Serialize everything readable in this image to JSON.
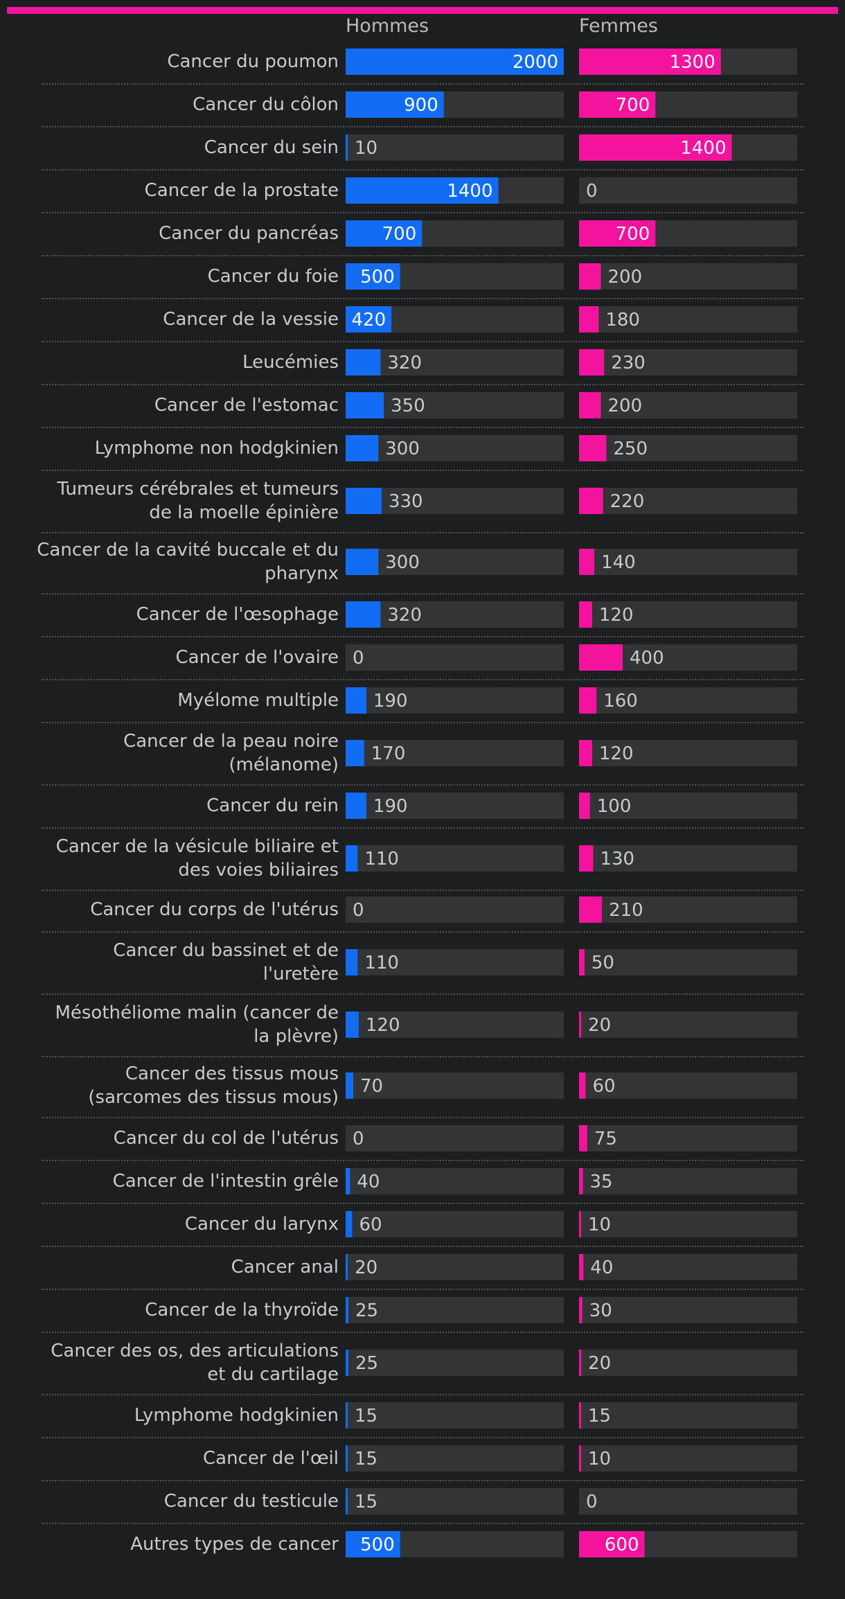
{
  "colors": {
    "men": "#136cf4",
    "women": "#f4139c",
    "track": "#333436",
    "label_inside": "#ffffff",
    "label_outside": "#c9cacc"
  },
  "chart_data": {
    "type": "bar",
    "orientation": "horizontal",
    "xlim": [
      0,
      2000
    ],
    "series": [
      {
        "name": "Hommes",
        "values": [
          2000,
          900,
          10,
          1400,
          700,
          500,
          420,
          320,
          350,
          300,
          330,
          300,
          320,
          0,
          190,
          170,
          190,
          110,
          0,
          110,
          120,
          70,
          0,
          40,
          60,
          20,
          25,
          25,
          15,
          15,
          15,
          500
        ]
      },
      {
        "name": "Femmes",
        "values": [
          1300,
          700,
          1400,
          0,
          700,
          200,
          180,
          230,
          200,
          250,
          220,
          140,
          120,
          400,
          160,
          120,
          100,
          130,
          210,
          50,
          20,
          60,
          75,
          35,
          10,
          40,
          30,
          20,
          15,
          10,
          0,
          600
        ]
      }
    ],
    "categories": [
      "Cancer du poumon",
      "Cancer du côlon",
      "Cancer du sein",
      "Cancer de la prostate",
      "Cancer du pancréas",
      "Cancer du foie",
      "Cancer de la vessie",
      "Leucémies",
      "Cancer de l'estomac",
      "Lymphome non hodgkinien",
      "Tumeurs cérébrales et tumeurs de la moelle épinière",
      "Cancer de la cavité buccale et du pharynx",
      "Cancer de l'œsophage",
      "Cancer de l'ovaire",
      "Myélome multiple",
      "Cancer de la peau noire (mélanome)",
      "Cancer du rein",
      "Cancer de la vésicule biliaire et des voies biliaires",
      "Cancer du corps de l'utérus",
      "Cancer du bassinet et de l'uretère",
      "Mésothéliome malin (cancer de la plèvre)",
      "Cancer des tissus mous (sarcomes des tissus mous)",
      "Cancer du col de l'utérus",
      "Cancer de l'intestin grêle",
      "Cancer du larynx",
      "Cancer anal",
      "Cancer de la thyroïde",
      "Cancer des os, des articulations et du cartilage",
      "Lymphome hodgkinien",
      "Cancer de l'œil",
      "Cancer du testicule",
      "Autres types de cancer"
    ]
  }
}
